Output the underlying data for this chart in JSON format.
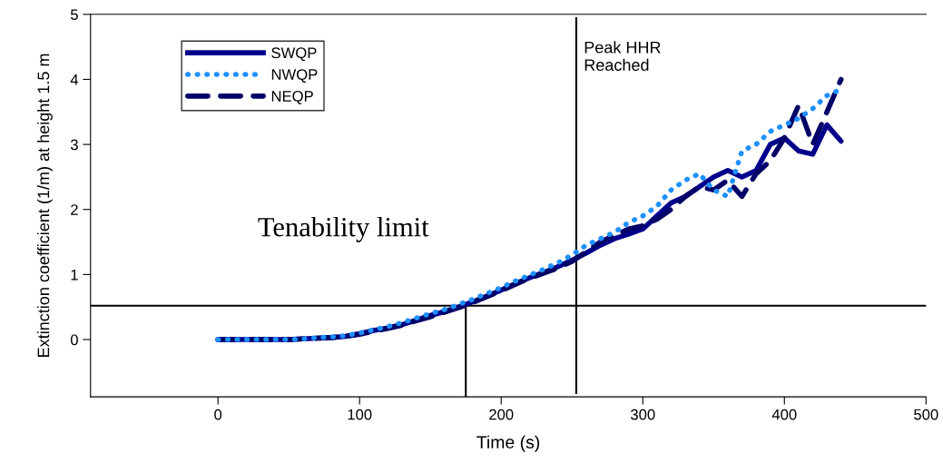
{
  "chart_data": {
    "type": "line",
    "xlabel": "Time (s)",
    "ylabel": "Extinction coefficient (1/m) at height 1.5 m",
    "xlim": [
      -90,
      500
    ],
    "xticks": [
      0,
      100,
      200,
      300,
      400,
      500
    ],
    "ylim": [
      -0.88,
      5
    ],
    "yticks": [
      0,
      1,
      2,
      3,
      4,
      5
    ],
    "grid": false,
    "legend": "top left",
    "marker": "none",
    "x": [
      0,
      10,
      20,
      30,
      40,
      50,
      60,
      70,
      80,
      90,
      100,
      110,
      120,
      130,
      140,
      150,
      160,
      170,
      180,
      190,
      200,
      210,
      220,
      230,
      240,
      250,
      260,
      270,
      280,
      290,
      300,
      310,
      320,
      330,
      340,
      350,
      360,
      370,
      380,
      390,
      400,
      410,
      420,
      430,
      440
    ],
    "series": [
      {
        "name": "SWQP",
        "color": "#00008b",
        "line_style": "solid",
        "values": [
          0,
          0,
          0,
          0,
          0,
          0,
          0.01,
          0.02,
          0.03,
          0.05,
          0.09,
          0.14,
          0.18,
          0.23,
          0.3,
          0.37,
          0.43,
          0.5,
          0.58,
          0.67,
          0.76,
          0.86,
          0.95,
          1.03,
          1.12,
          1.22,
          1.33,
          1.45,
          1.55,
          1.62,
          1.7,
          1.9,
          2.1,
          2.2,
          2.35,
          2.5,
          2.6,
          2.5,
          2.6,
          3.0,
          3.1,
          2.9,
          2.85,
          3.3,
          3.05
        ]
      },
      {
        "name": "NWQP",
        "color": "#1e90ff",
        "line_style": "dotted",
        "values": [
          0,
          0,
          0,
          0,
          0,
          0,
          0.01,
          0.03,
          0.04,
          0.06,
          0.1,
          0.15,
          0.2,
          0.26,
          0.33,
          0.4,
          0.46,
          0.54,
          0.62,
          0.71,
          0.8,
          0.9,
          0.99,
          1.08,
          1.18,
          1.3,
          1.45,
          1.55,
          1.65,
          1.8,
          1.9,
          2.05,
          2.3,
          2.45,
          2.55,
          2.3,
          2.2,
          2.9,
          3.0,
          3.2,
          3.3,
          3.4,
          3.55,
          3.75,
          3.85
        ]
      },
      {
        "name": "NEQP",
        "color": "#000066",
        "line_style": "dashed",
        "values": [
          0,
          0,
          0,
          0,
          0,
          0,
          0.01,
          0.02,
          0.03,
          0.05,
          0.08,
          0.13,
          0.17,
          0.22,
          0.29,
          0.35,
          0.42,
          0.49,
          0.57,
          0.66,
          0.75,
          0.85,
          0.94,
          1.02,
          1.1,
          1.2,
          1.35,
          1.5,
          1.6,
          1.7,
          1.75,
          1.85,
          2.0,
          2.2,
          2.35,
          2.3,
          2.45,
          2.2,
          2.55,
          2.75,
          3.1,
          3.6,
          3.0,
          3.5,
          4.0
        ]
      },
      {
        "type": "line",
        "color": "#000000",
        "line_style": "solid",
        "x": [
          175,
          175
        ],
        "values": [
          -0.88,
          0.52
        ]
      }
    ],
    "ref_lines": [
      {
        "axis": "y",
        "value": 0.52,
        "color": "#000000"
      },
      {
        "axis": "x",
        "value": 253,
        "label": "Peak HHR\nReached",
        "color": "#000000"
      }
    ],
    "annotations": [
      "Tenability limit"
    ]
  }
}
